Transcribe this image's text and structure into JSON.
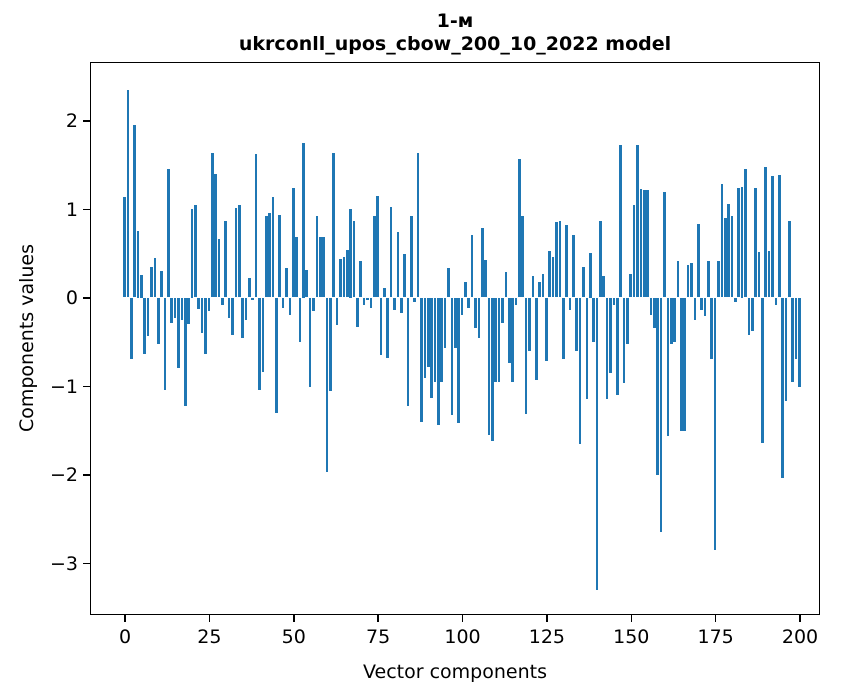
{
  "figure": {
    "background": "#ffffff",
    "title_line1": "1-м",
    "title_line2": "ukrconll_upos_cbow_200_10_2022 model"
  },
  "chart_data": {
    "type": "bar",
    "title": "1-м\nukrconll_upos_cbow_200_10_2022 model",
    "xlabel": "Vector components",
    "ylabel": "Components values",
    "bar_color": "#1f77b4",
    "axis_color": "#000000",
    "grid": false,
    "legend": null,
    "x_description": "component index 0..200",
    "x_ticks": [
      0,
      25,
      50,
      75,
      100,
      125,
      150,
      175,
      200
    ],
    "y_ticks": [
      2,
      1,
      0,
      -1,
      -2,
      -3
    ],
    "xlim": [
      -10.4,
      206.1
    ],
    "ylim": [
      -3.58,
      2.67
    ],
    "values": [
      1.13,
      2.35,
      -0.69,
      1.95,
      0.75,
      0.25,
      -0.64,
      -0.44,
      0.35,
      0.45,
      -0.53,
      0.3,
      -1.05,
      1.45,
      -0.29,
      -0.23,
      -0.8,
      -0.25,
      -1.23,
      -0.3,
      1.0,
      1.05,
      -0.13,
      -0.4,
      -0.64,
      -0.15,
      1.63,
      1.4,
      0.66,
      -0.08,
      0.87,
      -0.23,
      -0.42,
      1.01,
      1.05,
      -0.46,
      -0.25,
      0.22,
      -0.03,
      1.62,
      -1.04,
      -0.84,
      0.92,
      0.95,
      1.14,
      -1.3,
      0.93,
      -0.12,
      0.33,
      -0.2,
      1.24,
      0.68,
      -0.5,
      1.75,
      0.31,
      -1.01,
      -0.15,
      0.92,
      0.68,
      0.68,
      -1.97,
      -1.06,
      1.63,
      -0.31,
      0.43,
      0.46,
      0.54,
      1.0,
      0.86,
      -0.33,
      0.41,
      -0.08,
      -0.03,
      -0.12,
      0.92,
      1.15,
      -0.65,
      0.11,
      -0.68,
      1.02,
      -0.14,
      0.74,
      -0.17,
      0.49,
      -1.23,
      0.92,
      -0.05,
      1.63,
      -1.41,
      -0.91,
      -0.78,
      -1.14,
      -0.95,
      -1.44,
      -0.95,
      -0.57,
      0.33,
      -1.33,
      -0.57,
      -1.42,
      -0.2,
      0.18,
      -0.12,
      0.71,
      -0.35,
      -0.46,
      0.79,
      0.42,
      -1.55,
      -1.62,
      -0.95,
      -0.95,
      -0.29,
      0.29,
      -0.74,
      -0.95,
      -0.08,
      1.56,
      0.92,
      -1.32,
      -0.61,
      0.24,
      -0.93,
      0.18,
      0.26,
      -0.72,
      0.53,
      0.46,
      0.85,
      0.87,
      -0.69,
      0.82,
      -0.14,
      0.71,
      -0.61,
      -1.65,
      0.34,
      -1.15,
      0.5,
      -0.5,
      -3.3,
      0.87,
      0.24,
      -1.15,
      -0.85,
      -0.08,
      -1.1,
      1.72,
      -0.97,
      -0.52,
      0.26,
      1.05,
      1.72,
      1.23,
      1.21,
      1.21,
      -0.2,
      -0.35,
      -2.0,
      -2.65,
      1.19,
      -1.57,
      -0.53,
      -0.5,
      0.41,
      -1.51,
      -1.51,
      0.37,
      0.39,
      -0.25,
      0.83,
      -0.14,
      -0.21,
      0.41,
      -0.69,
      -2.85,
      0.41,
      1.28,
      0.9,
      1.06,
      0.92,
      -0.05,
      1.24,
      1.25,
      1.45,
      -0.42,
      -0.38,
      1.24,
      0.51,
      -1.64,
      1.48,
      0.52,
      1.37,
      -0.08,
      1.38,
      -2.04,
      -1.17,
      0.87,
      -0.96,
      -0.69,
      -1.01
    ]
  }
}
